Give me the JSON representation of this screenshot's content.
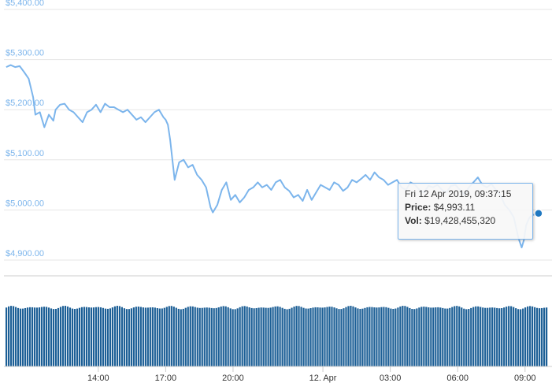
{
  "chart_data": {
    "type": "line",
    "y_axis": {
      "ylim": [
        4900,
        5400
      ],
      "ticks": [
        {
          "value": 5400,
          "label": "$5,400.00"
        },
        {
          "value": 5300,
          "label": "$5,300.00"
        },
        {
          "value": 5200,
          "label": "$5,200.00"
        },
        {
          "value": 5100,
          "label": "$5,100.00"
        },
        {
          "value": 5000,
          "label": "$5,000.00"
        },
        {
          "value": 4900,
          "label": "$4,900.00"
        }
      ]
    },
    "x_axis": {
      "ticks": [
        {
          "label": "14:00",
          "hours": 14
        },
        {
          "label": "17:00",
          "hours": 17
        },
        {
          "label": "20:00",
          "hours": 20
        },
        {
          "label": "12. Apr",
          "hours": 24
        },
        {
          "label": "03:00",
          "hours": 27
        },
        {
          "label": "06:00",
          "hours": 30
        },
        {
          "label": "09:00",
          "hours": 33
        }
      ]
    },
    "colors": {
      "line": "#7cb5ec",
      "volume": "#1c5f96",
      "grid": "#e6e6e6"
    },
    "price_series": [
      [
        9.9,
        5285
      ],
      [
        10.1,
        5289
      ],
      [
        10.3,
        5285
      ],
      [
        10.5,
        5287
      ],
      [
        10.7,
        5275
      ],
      [
        10.9,
        5262
      ],
      [
        11.1,
        5225
      ],
      [
        11.2,
        5190
      ],
      [
        11.4,
        5195
      ],
      [
        11.6,
        5165
      ],
      [
        11.8,
        5190
      ],
      [
        12.0,
        5178
      ],
      [
        12.1,
        5200
      ],
      [
        12.3,
        5210
      ],
      [
        12.5,
        5212
      ],
      [
        12.7,
        5200
      ],
      [
        12.9,
        5195
      ],
      [
        13.1,
        5185
      ],
      [
        13.3,
        5175
      ],
      [
        13.5,
        5195
      ],
      [
        13.7,
        5200
      ],
      [
        13.9,
        5210
      ],
      [
        14.1,
        5195
      ],
      [
        14.3,
        5212
      ],
      [
        14.5,
        5205
      ],
      [
        14.7,
        5205
      ],
      [
        14.9,
        5200
      ],
      [
        15.1,
        5195
      ],
      [
        15.3,
        5200
      ],
      [
        15.5,
        5190
      ],
      [
        15.7,
        5180
      ],
      [
        15.9,
        5185
      ],
      [
        16.1,
        5175
      ],
      [
        16.3,
        5185
      ],
      [
        16.5,
        5195
      ],
      [
        16.7,
        5200
      ],
      [
        16.9,
        5185
      ],
      [
        17.0,
        5180
      ],
      [
        17.1,
        5170
      ],
      [
        17.2,
        5140
      ],
      [
        17.3,
        5100
      ],
      [
        17.4,
        5060
      ],
      [
        17.6,
        5095
      ],
      [
        17.8,
        5100
      ],
      [
        18.0,
        5085
      ],
      [
        18.2,
        5090
      ],
      [
        18.4,
        5070
      ],
      [
        18.6,
        5060
      ],
      [
        18.8,
        5045
      ],
      [
        19.0,
        5005
      ],
      [
        19.1,
        4995
      ],
      [
        19.3,
        5010
      ],
      [
        19.5,
        5040
      ],
      [
        19.7,
        5055
      ],
      [
        19.9,
        5020
      ],
      [
        20.1,
        5030
      ],
      [
        20.3,
        5015
      ],
      [
        20.5,
        5025
      ],
      [
        20.7,
        5040
      ],
      [
        20.9,
        5045
      ],
      [
        21.1,
        5055
      ],
      [
        21.3,
        5045
      ],
      [
        21.5,
        5050
      ],
      [
        21.7,
        5040
      ],
      [
        21.9,
        5055
      ],
      [
        22.1,
        5060
      ],
      [
        22.3,
        5045
      ],
      [
        22.5,
        5038
      ],
      [
        22.7,
        5025
      ],
      [
        22.9,
        5030
      ],
      [
        23.1,
        5018
      ],
      [
        23.3,
        5040
      ],
      [
        23.5,
        5020
      ],
      [
        23.7,
        5035
      ],
      [
        23.9,
        5050
      ],
      [
        24.1,
        5045
      ],
      [
        24.3,
        5040
      ],
      [
        24.5,
        5055
      ],
      [
        24.7,
        5050
      ],
      [
        24.9,
        5038
      ],
      [
        25.1,
        5045
      ],
      [
        25.3,
        5060
      ],
      [
        25.5,
        5055
      ],
      [
        25.7,
        5062
      ],
      [
        25.9,
        5070
      ],
      [
        26.1,
        5060
      ],
      [
        26.3,
        5075
      ],
      [
        26.5,
        5065
      ],
      [
        26.7,
        5060
      ],
      [
        26.9,
        5050
      ],
      [
        27.1,
        5055
      ],
      [
        27.3,
        5060
      ],
      [
        27.5,
        5045
      ],
      [
        27.7,
        5040
      ],
      [
        27.9,
        5055
      ],
      [
        28.1,
        5050
      ],
      [
        28.3,
        5040
      ],
      [
        28.5,
        5035
      ],
      [
        28.7,
        5048
      ],
      [
        28.9,
        5045
      ],
      [
        29.1,
        5050
      ],
      [
        29.3,
        5040
      ],
      [
        29.5,
        5035
      ],
      [
        29.7,
        5048
      ],
      [
        29.9,
        5050
      ],
      [
        30.1,
        5040
      ],
      [
        30.3,
        5030
      ],
      [
        30.5,
        5045
      ],
      [
        30.7,
        5055
      ],
      [
        30.9,
        5065
      ],
      [
        31.1,
        5050
      ],
      [
        31.3,
        5045
      ],
      [
        31.5,
        5052
      ],
      [
        31.7,
        5040
      ],
      [
        31.9,
        5030
      ],
      [
        32.1,
        5010
      ],
      [
        32.3,
        5000
      ],
      [
        32.5,
        4985
      ],
      [
        32.7,
        4945
      ],
      [
        32.85,
        4925
      ],
      [
        32.95,
        4940
      ],
      [
        33.05,
        4970
      ],
      [
        33.2,
        4985
      ],
      [
        33.35,
        4990
      ],
      [
        33.6,
        4993.11
      ]
    ],
    "volume_level": 0.97,
    "tooltip": {
      "date": "Fri 12 Apr 2019, 09:37:15",
      "price_label": "Price:",
      "price": "$4,993.11",
      "vol_label": "Vol:",
      "vol": "$19,428,455,320"
    }
  }
}
